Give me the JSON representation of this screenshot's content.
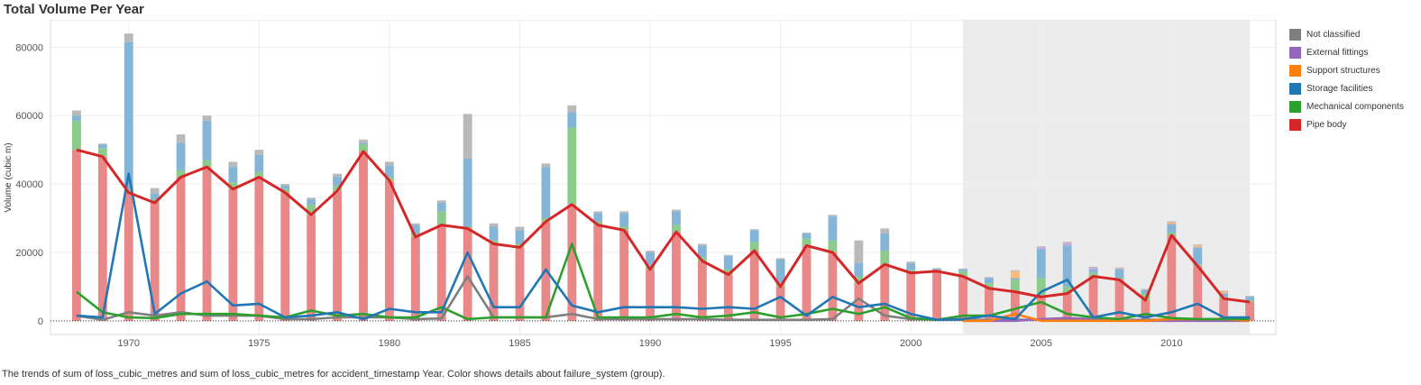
{
  "title": "Total Volume Per Year",
  "caption": "The trends of sum of loss_cubic_metres and sum of loss_cubic_metres for accident_timestamp Year.  Color shows details about failure_system (group).",
  "chart_data": {
    "type": "bar",
    "ylabel": "Volume (cubic m)",
    "xlabel": "",
    "xlim": [
      1967,
      2014
    ],
    "ylim": [
      -4000,
      88000
    ],
    "xticks": [
      1970,
      1975,
      1980,
      1985,
      1990,
      1995,
      2000,
      2005,
      2010
    ],
    "yticks": [
      0,
      20000,
      40000,
      60000,
      80000
    ],
    "ytick_labels": [
      "0",
      "20000",
      "40000",
      "60000",
      "80000"
    ],
    "highlight_band": [
      2002,
      2013
    ],
    "legend_position": "right",
    "grid": true,
    "years": [
      1968,
      1969,
      1970,
      1971,
      1972,
      1973,
      1974,
      1975,
      1976,
      1977,
      1978,
      1979,
      1980,
      1981,
      1982,
      1983,
      1984,
      1985,
      1986,
      1987,
      1988,
      1989,
      1990,
      1991,
      1992,
      1993,
      1994,
      1995,
      1996,
      1997,
      1998,
      1999,
      2000,
      2001,
      2002,
      2003,
      2004,
      2005,
      2006,
      2007,
      2008,
      2009,
      2010,
      2011,
      2012,
      2013
    ],
    "series": [
      {
        "name": "Not classified",
        "color": "#7f7f7f",
        "values": [
          1500,
          300,
          2500,
          1500,
          2500,
          1500,
          1500,
          1500,
          500,
          500,
          1000,
          1000,
          1000,
          500,
          700,
          13000,
          1000,
          1000,
          1000,
          2000,
          500,
          500,
          500,
          500,
          500,
          300,
          300,
          300,
          300,
          500,
          6500,
          1500,
          500,
          300,
          300,
          300,
          300,
          300,
          300,
          300,
          300,
          300,
          300,
          300,
          300,
          300
        ]
      },
      {
        "name": "External fittings",
        "color": "#9467bd",
        "values": [
          0,
          0,
          0,
          0,
          0,
          0,
          0,
          0,
          0,
          0,
          0,
          0,
          0,
          0,
          0,
          0,
          0,
          0,
          0,
          0,
          0,
          0,
          0,
          0,
          0,
          0,
          0,
          0,
          0,
          0,
          0,
          0,
          0,
          0,
          0,
          0,
          0,
          500,
          800,
          500,
          300,
          0,
          0,
          0,
          0,
          0
        ]
      },
      {
        "name": "Support structures",
        "color": "#ff7f0e",
        "values": [
          0,
          0,
          0,
          0,
          0,
          0,
          0,
          0,
          0,
          0,
          0,
          0,
          0,
          0,
          0,
          0,
          0,
          0,
          0,
          0,
          0,
          0,
          0,
          0,
          0,
          0,
          0,
          0,
          0,
          0,
          0,
          0,
          0,
          0,
          0,
          0,
          2000,
          0,
          0,
          0,
          0,
          0,
          500,
          500,
          500,
          0
        ]
      },
      {
        "name": "Storage facilities",
        "color": "#1f77b4",
        "values": [
          1500,
          1000,
          43000,
          2000,
          8000,
          11500,
          4500,
          5000,
          1000,
          1500,
          2500,
          500,
          3500,
          2500,
          2500,
          20000,
          4000,
          4000,
          15000,
          4500,
          2500,
          4000,
          4000,
          4000,
          3500,
          4000,
          3500,
          7000,
          1500,
          7000,
          4000,
          5000,
          2000,
          300,
          500,
          1500,
          500,
          8500,
          12000,
          1000,
          2500,
          1000,
          2500,
          5000,
          1000,
          1000
        ]
      },
      {
        "name": "Mechanical components",
        "color": "#2ca02c",
        "values": [
          8500,
          2500,
          1000,
          800,
          2000,
          2000,
          2000,
          1500,
          1000,
          3000,
          1500,
          2000,
          1000,
          1000,
          4000,
          500,
          1000,
          1000,
          1000,
          22500,
          1000,
          1000,
          1000,
          2000,
          1000,
          1500,
          2500,
          1000,
          2000,
          3500,
          2000,
          4000,
          800,
          300,
          1500,
          1500,
          3500,
          5500,
          2000,
          1000,
          500,
          2000,
          800,
          500,
          500,
          500
        ]
      },
      {
        "name": "Pipe body",
        "color": "#d62728",
        "values": [
          50000,
          48000,
          37500,
          34500,
          42000,
          45000,
          38500,
          42000,
          37500,
          31000,
          38000,
          49500,
          41000,
          24500,
          28000,
          27000,
          22500,
          21500,
          29000,
          34000,
          28000,
          26500,
          15000,
          26000,
          17500,
          13500,
          20500,
          10000,
          22000,
          20000,
          11000,
          16500,
          14000,
          14500,
          13000,
          9500,
          8500,
          7000,
          8000,
          13000,
          12000,
          6000,
          25000,
          16000,
          6500,
          5500
        ]
      }
    ]
  }
}
